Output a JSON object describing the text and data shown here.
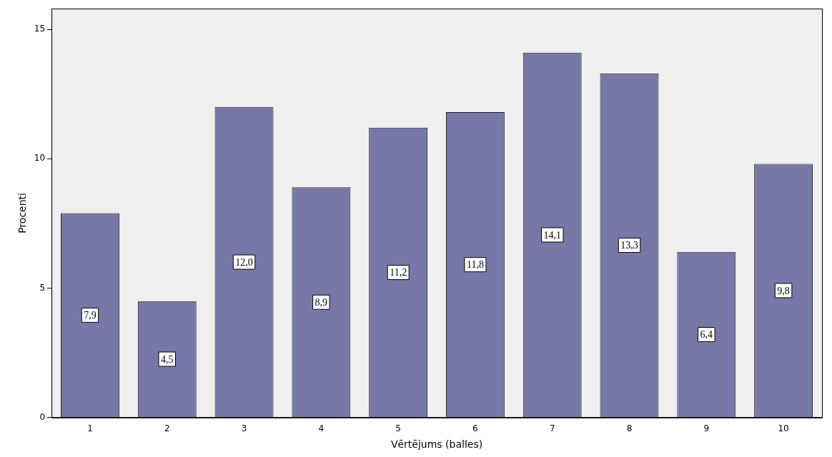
{
  "chart_data": {
    "type": "bar",
    "xlabel": "Vērtējums (balles)",
    "ylabel": "Procenti",
    "categories": [
      "1",
      "2",
      "3",
      "4",
      "5",
      "6",
      "7",
      "8",
      "9",
      "10"
    ],
    "values": [
      7.9,
      4.5,
      12.0,
      8.9,
      11.2,
      11.8,
      14.1,
      13.3,
      6.4,
      9.8
    ],
    "value_labels": [
      "7,9",
      "4,5",
      "12,0",
      "8,9",
      "11,2",
      "11,8",
      "14,1",
      "13,3",
      "6,4",
      "9,8"
    ],
    "color": "#7878a8",
    "ylim": [
      0,
      15.8
    ],
    "yticks": [
      0,
      5,
      10,
      15
    ],
    "grid": false,
    "legend": false
  }
}
